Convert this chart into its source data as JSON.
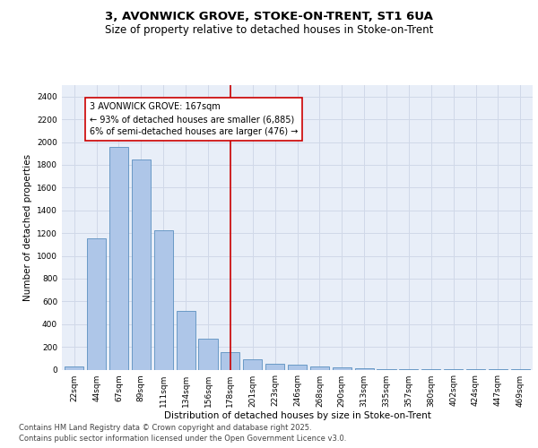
{
  "title_line1": "3, AVONWICK GROVE, STOKE-ON-TRENT, ST1 6UA",
  "title_line2": "Size of property relative to detached houses in Stoke-on-Trent",
  "xlabel": "Distribution of detached houses by size in Stoke-on-Trent",
  "ylabel": "Number of detached properties",
  "categories": [
    "22sqm",
    "44sqm",
    "67sqm",
    "89sqm",
    "111sqm",
    "134sqm",
    "156sqm",
    "178sqm",
    "201sqm",
    "223sqm",
    "246sqm",
    "268sqm",
    "290sqm",
    "313sqm",
    "335sqm",
    "357sqm",
    "380sqm",
    "402sqm",
    "424sqm",
    "447sqm",
    "469sqm"
  ],
  "values": [
    30,
    1155,
    1960,
    1845,
    1225,
    515,
    275,
    155,
    90,
    50,
    45,
    25,
    20,
    10,
    5,
    5,
    5,
    5,
    5,
    5,
    5
  ],
  "bar_color": "#aec6e8",
  "bar_edge_color": "#5a8fc0",
  "vline_x_index": 7,
  "vline_color": "#cc0000",
  "annotation_text": "3 AVONWICK GROVE: 167sqm\n← 93% of detached houses are smaller (6,885)\n6% of semi-detached houses are larger (476) →",
  "annotation_box_color": "#cc0000",
  "ylim": [
    0,
    2500
  ],
  "yticks": [
    0,
    200,
    400,
    600,
    800,
    1000,
    1200,
    1400,
    1600,
    1800,
    2000,
    2200,
    2400
  ],
  "grid_color": "#d0d8e8",
  "bg_color": "#e8eef8",
  "footer_line1": "Contains HM Land Registry data © Crown copyright and database right 2025.",
  "footer_line2": "Contains public sector information licensed under the Open Government Licence v3.0.",
  "title_fontsize": 9.5,
  "subtitle_fontsize": 8.5,
  "axis_label_fontsize": 7.5,
  "tick_fontsize": 6.5,
  "annotation_fontsize": 7,
  "footer_fontsize": 6
}
